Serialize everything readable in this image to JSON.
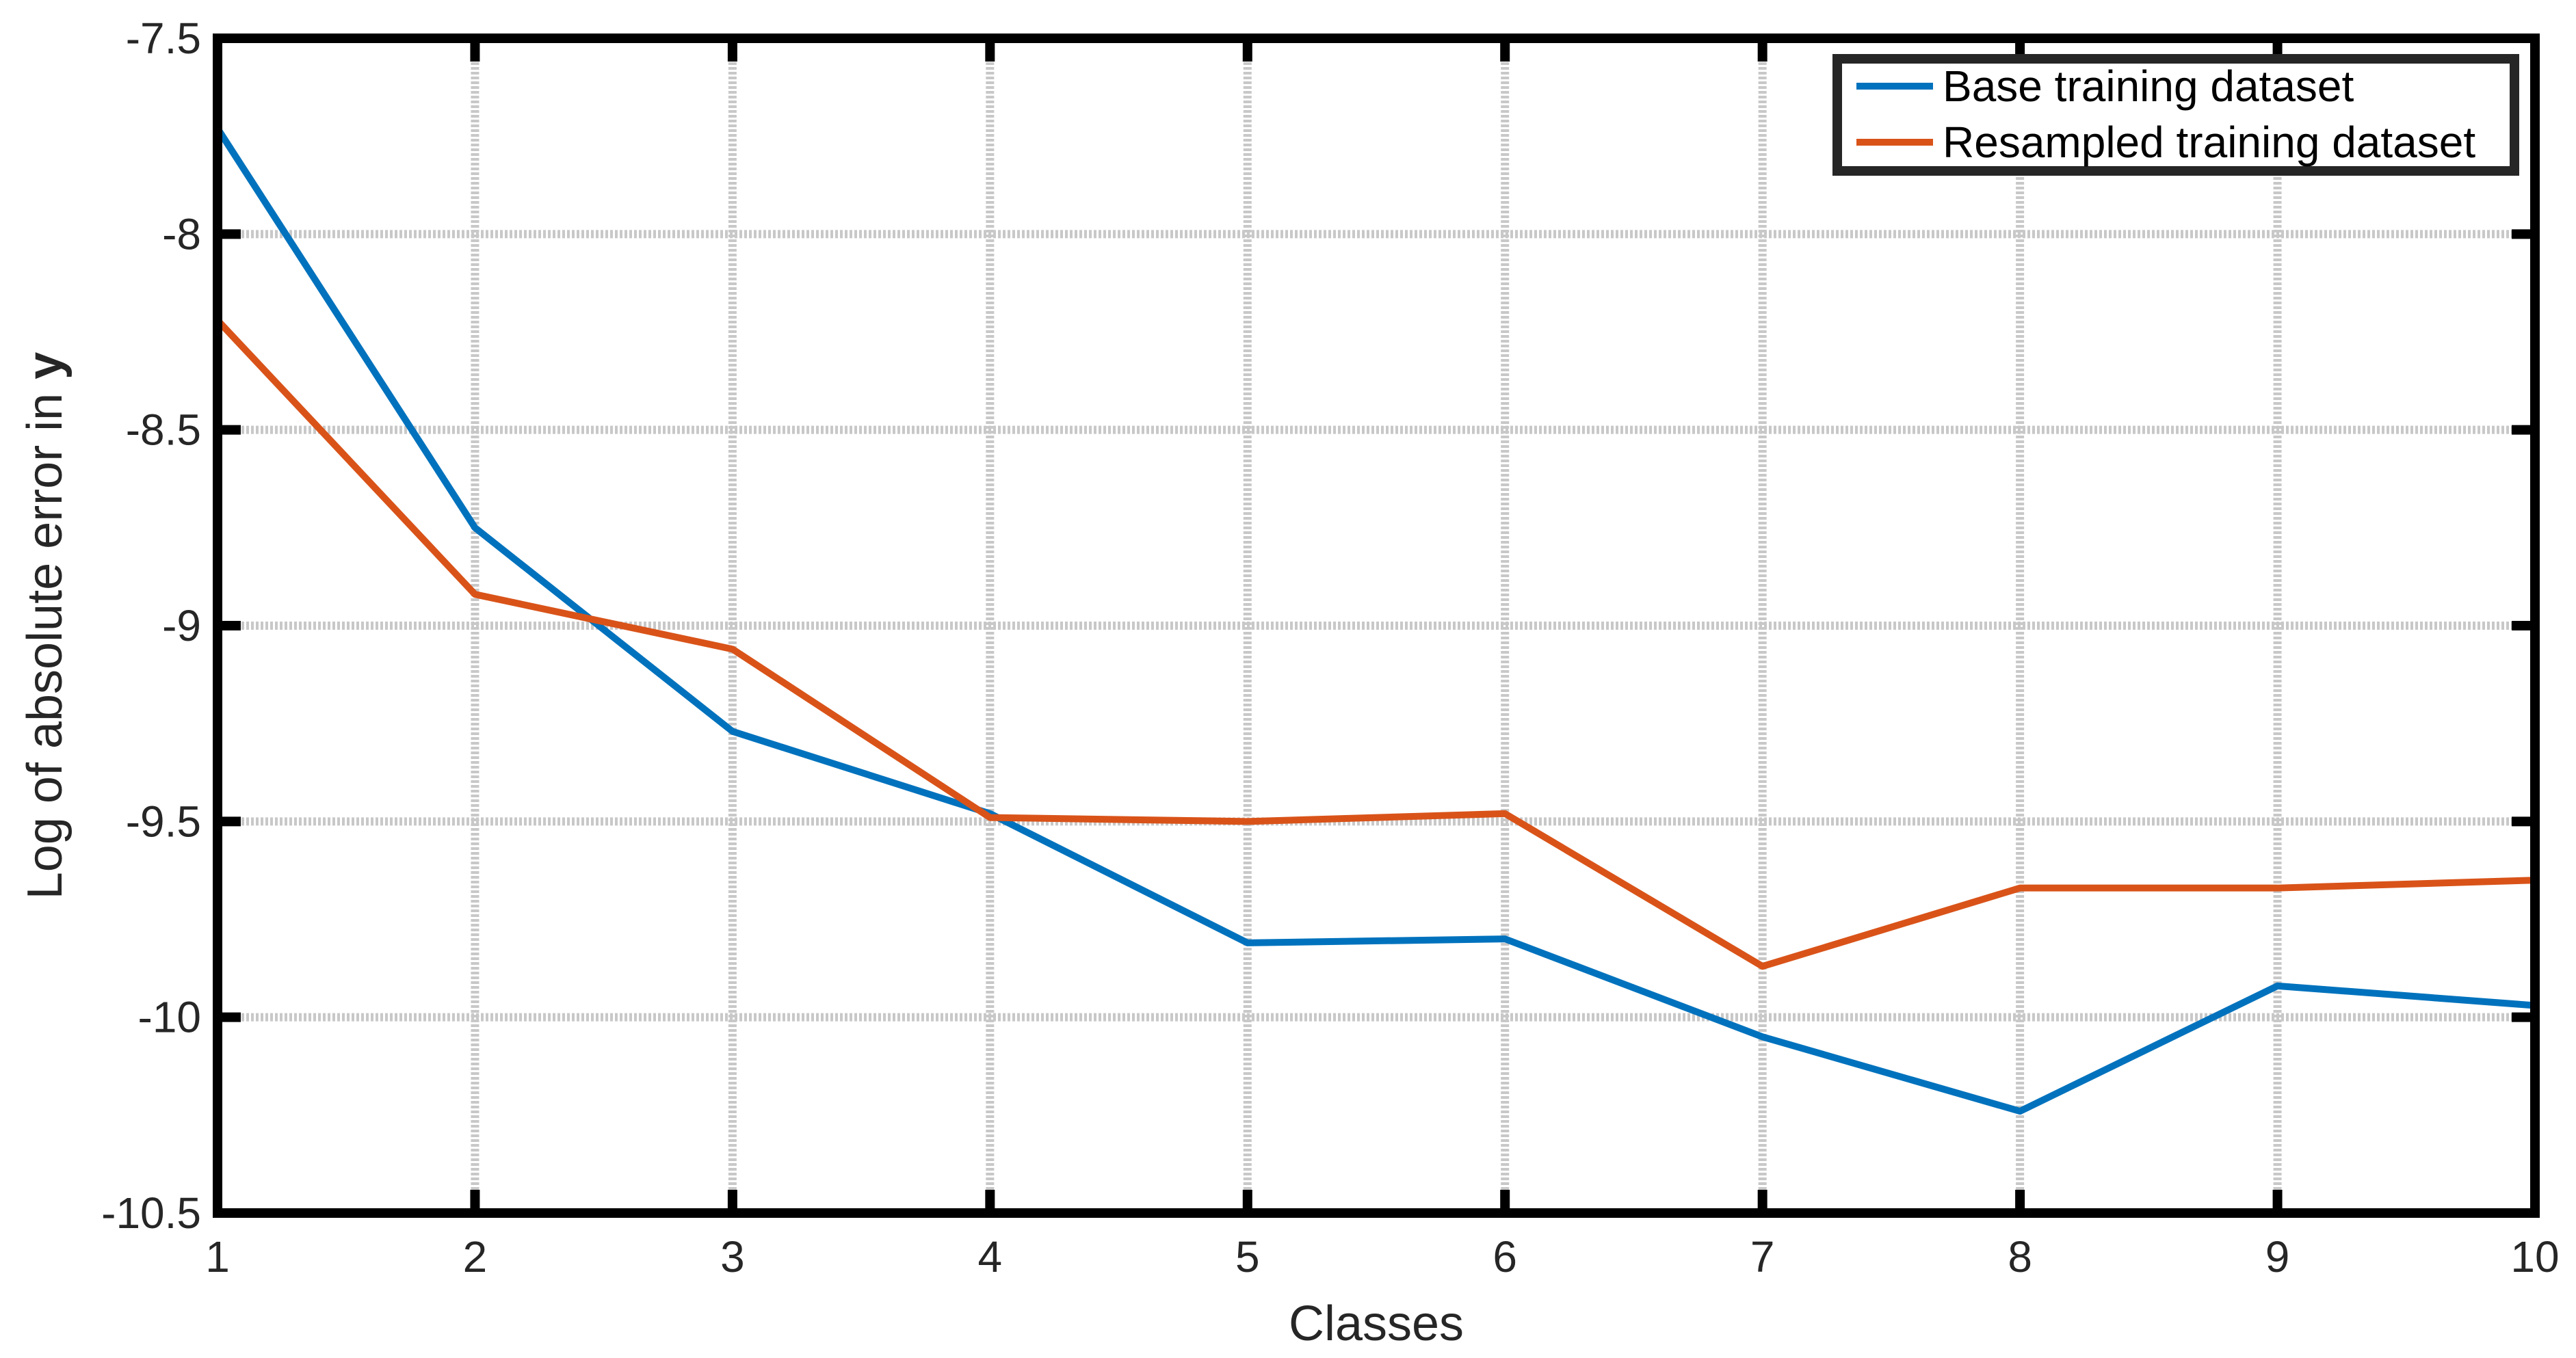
{
  "chart_data": {
    "type": "line",
    "title": "",
    "xlabel": "Classes",
    "ylabel_main": "Log of absolute error in ",
    "ylabel_var": "y",
    "x": [
      1,
      2,
      3,
      4,
      5,
      6,
      7,
      8,
      9,
      10
    ],
    "xlim": [
      1,
      10
    ],
    "ylim": [
      -10.5,
      -7.5
    ],
    "xticks": [
      1,
      2,
      3,
      4,
      5,
      6,
      7,
      8,
      9,
      10
    ],
    "yticks": [
      -10.5,
      -10,
      -9.5,
      -9,
      -8.5,
      -8,
      -7.5
    ],
    "ytick_labels": [
      "-10.5",
      "-10",
      "-9.5",
      "-9",
      "-8.5",
      "-8",
      "-7.5"
    ],
    "grid": true,
    "legend_position": "top-right",
    "series": [
      {
        "name": "Base training dataset",
        "color": "#0072BD",
        "values": [
          -7.73,
          -8.75,
          -9.27,
          -9.48,
          -9.81,
          -9.8,
          -10.05,
          -10.24,
          -9.92,
          -9.97
        ]
      },
      {
        "name": "Resampled training dataset",
        "color": "#D95319",
        "values": [
          -8.22,
          -8.92,
          -9.06,
          -9.49,
          -9.5,
          -9.48,
          -9.87,
          -9.67,
          -9.67,
          -9.65
        ]
      }
    ]
  }
}
